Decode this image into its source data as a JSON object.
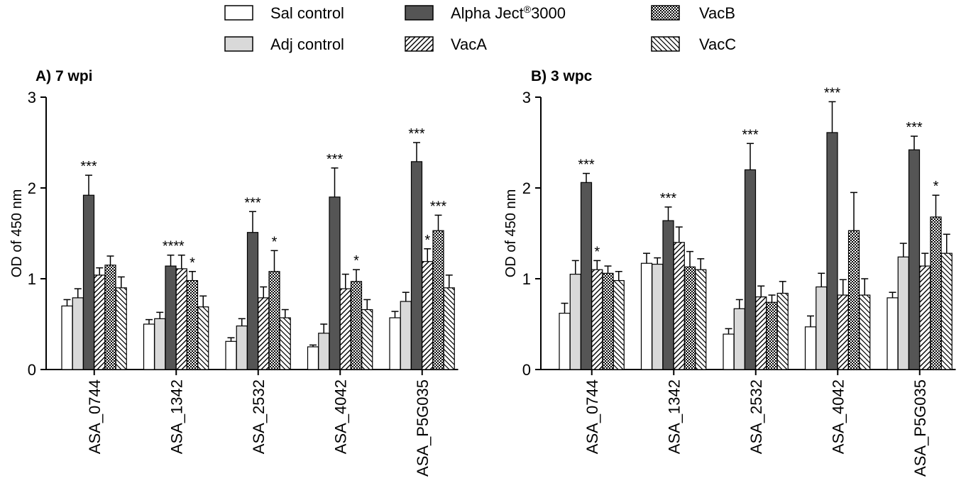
{
  "legend": {
    "items": [
      {
        "label": "Sal control",
        "pattern": "white"
      },
      {
        "label": "Adj control",
        "pattern": "lightgray"
      },
      {
        "label": "Alpha Ject",
        "superscript": "®",
        "suffix": "3000",
        "pattern": "darkgray"
      },
      {
        "label": "VacA",
        "pattern": "diagonal"
      },
      {
        "label": "VacB",
        "pattern": "checker"
      },
      {
        "label": "VacC",
        "pattern": "backdiagonal"
      }
    ]
  },
  "colors": {
    "sal": "#ffffff",
    "adj": "#d9d9d9",
    "alpha": "#555555",
    "stroke": "#000000"
  },
  "chart_data": [
    {
      "type": "bar",
      "title": "A) 7 wpi",
      "ylabel": "OD of 450 nm",
      "ylim": [
        0,
        3
      ],
      "yticks": [
        0,
        1,
        2,
        3
      ],
      "categories": [
        "ASA_0744",
        "ASA_1342",
        "ASA_2532",
        "ASA_4042",
        "ASA_P5G035"
      ],
      "series": [
        {
          "name": "Sal control",
          "values": [
            0.7,
            0.5,
            0.31,
            0.25,
            0.57
          ],
          "errors": [
            0.07,
            0.05,
            0.04,
            0.02,
            0.07
          ]
        },
        {
          "name": "Adj control",
          "values": [
            0.79,
            0.56,
            0.48,
            0.4,
            0.75
          ],
          "errors": [
            0.1,
            0.07,
            0.08,
            0.1,
            0.1
          ]
        },
        {
          "name": "Alpha Ject®3000",
          "values": [
            1.92,
            1.14,
            1.51,
            1.9,
            2.29
          ],
          "errors": [
            0.22,
            0.12,
            0.23,
            0.32,
            0.21
          ]
        },
        {
          "name": "VacA",
          "values": [
            1.04,
            1.11,
            0.79,
            0.89,
            1.19
          ],
          "errors": [
            0.08,
            0.15,
            0.12,
            0.16,
            0.14
          ]
        },
        {
          "name": "VacB",
          "values": [
            1.15,
            0.98,
            1.08,
            0.97,
            1.53
          ],
          "errors": [
            0.1,
            0.1,
            0.23,
            0.13,
            0.17
          ]
        },
        {
          "name": "VacC",
          "values": [
            0.9,
            0.69,
            0.57,
            0.66,
            0.9
          ],
          "errors": [
            0.12,
            0.12,
            0.09,
            0.11,
            0.14
          ]
        }
      ],
      "significance": [
        {
          "category": 0,
          "series": 2,
          "text": "***"
        },
        {
          "category": 1,
          "series": 2,
          "text": "***"
        },
        {
          "category": 1,
          "series": 3,
          "text": "*"
        },
        {
          "category": 1,
          "series": 4,
          "text": "*"
        },
        {
          "category": 2,
          "series": 2,
          "text": "***"
        },
        {
          "category": 2,
          "series": 4,
          "text": "*"
        },
        {
          "category": 3,
          "series": 2,
          "text": "***"
        },
        {
          "category": 3,
          "series": 4,
          "text": "*"
        },
        {
          "category": 4,
          "series": 2,
          "text": "***"
        },
        {
          "category": 4,
          "series": 3,
          "text": "*"
        },
        {
          "category": 4,
          "series": 4,
          "text": "***"
        }
      ]
    },
    {
      "type": "bar",
      "title": "B) 3 wpc",
      "ylabel": "OD of 450 nm",
      "ylim": [
        0,
        3
      ],
      "yticks": [
        0,
        1,
        2,
        3
      ],
      "categories": [
        "ASA_0744",
        "ASA_1342",
        "ASA_2532",
        "ASA_4042",
        "ASA_P5G035"
      ],
      "series": [
        {
          "name": "Sal control",
          "values": [
            0.62,
            1.17,
            0.39,
            0.47,
            0.79
          ],
          "errors": [
            0.11,
            0.11,
            0.06,
            0.12,
            0.06
          ]
        },
        {
          "name": "Adj control",
          "values": [
            1.05,
            1.16,
            0.67,
            0.91,
            1.24
          ],
          "errors": [
            0.15,
            0.07,
            0.1,
            0.15,
            0.15
          ]
        },
        {
          "name": "Alpha Ject®3000",
          "values": [
            2.06,
            1.64,
            2.2,
            2.61,
            2.42
          ],
          "errors": [
            0.1,
            0.15,
            0.29,
            0.34,
            0.15
          ]
        },
        {
          "name": "VacA",
          "values": [
            1.1,
            1.4,
            0.8,
            0.82,
            1.14
          ],
          "errors": [
            0.1,
            0.17,
            0.12,
            0.17,
            0.14
          ]
        },
        {
          "name": "VacB",
          "values": [
            1.06,
            1.13,
            0.74,
            1.53,
            1.68
          ],
          "errors": [
            0.08,
            0.17,
            0.08,
            0.42,
            0.24
          ]
        },
        {
          "name": "VacC",
          "values": [
            0.98,
            1.1,
            0.84,
            0.82,
            1.28
          ],
          "errors": [
            0.1,
            0.12,
            0.13,
            0.18,
            0.21
          ]
        }
      ],
      "significance": [
        {
          "category": 0,
          "series": 2,
          "text": "***"
        },
        {
          "category": 0,
          "series": 3,
          "text": "*"
        },
        {
          "category": 1,
          "series": 2,
          "text": "***"
        },
        {
          "category": 2,
          "series": 2,
          "text": "***"
        },
        {
          "category": 3,
          "series": 2,
          "text": "***"
        },
        {
          "category": 4,
          "series": 2,
          "text": "***"
        },
        {
          "category": 4,
          "series": 4,
          "text": "*"
        }
      ]
    }
  ]
}
